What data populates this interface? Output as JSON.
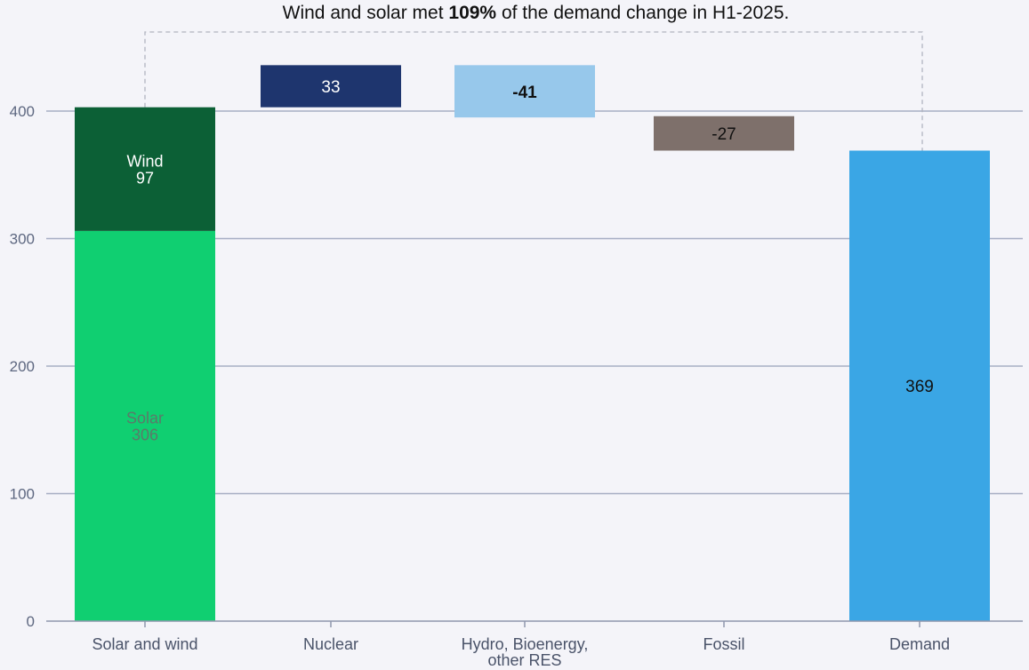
{
  "title": {
    "before": "Wind and solar met ",
    "bold": "109%",
    "after": " of the demand change in H1-2025."
  },
  "chart_data": {
    "type": "bar",
    "subtype": "waterfall",
    "title": "Wind and solar met 109% of the demand change in H1-2025.",
    "xlabel": "",
    "ylabel": "",
    "ylim": [
      0,
      440
    ],
    "yticks": [
      0,
      100,
      200,
      300,
      400
    ],
    "grid": true,
    "categories": [
      "Solar and wind",
      "Nuclear",
      "Hydro, Bioenergy, other RES",
      "Fossil",
      "Demand"
    ],
    "category_labels": [
      [
        "Solar and wind"
      ],
      [
        "Nuclear"
      ],
      [
        "Hydro, Bioenergy,",
        "other RES"
      ],
      [
        "Fossil"
      ],
      [
        "Demand"
      ]
    ],
    "bars": [
      {
        "category": "Solar and wind",
        "segment": "Solar",
        "label": "Solar",
        "value_label": "306",
        "value": 306,
        "base": 0,
        "top": 306,
        "color": "#10cf71",
        "text_color": "#5b7a6a"
      },
      {
        "category": "Solar and wind",
        "segment": "Wind",
        "label": "Wind",
        "value_label": "97",
        "value": 97,
        "base": 306,
        "top": 403,
        "color": "#0c6036",
        "text_color": "#ffffff"
      },
      {
        "category": "Nuclear",
        "label": "",
        "value_label": "33",
        "value": 33,
        "base": 403,
        "top": 436,
        "color": "#1e356e",
        "text_color": "#ffffff"
      },
      {
        "category": "Hydro, Bioenergy, other RES",
        "label": "",
        "value_label": "-41",
        "value": -41,
        "base": 395,
        "top": 436,
        "color": "#97c8eb",
        "text_color": "#111111",
        "bold": true
      },
      {
        "category": "Fossil",
        "label": "",
        "value_label": "-27",
        "value": -27,
        "base": 369,
        "top": 396,
        "color": "#7e706b",
        "text_color": "#111111"
      },
      {
        "category": "Demand",
        "label": "",
        "value_label": "369",
        "value": 369,
        "base": 0,
        "top": 369,
        "color": "#3aa6e5",
        "text_color": "#111111"
      }
    ],
    "connector": {
      "from": "Solar and wind",
      "to": "Demand",
      "style": "dashed"
    }
  }
}
